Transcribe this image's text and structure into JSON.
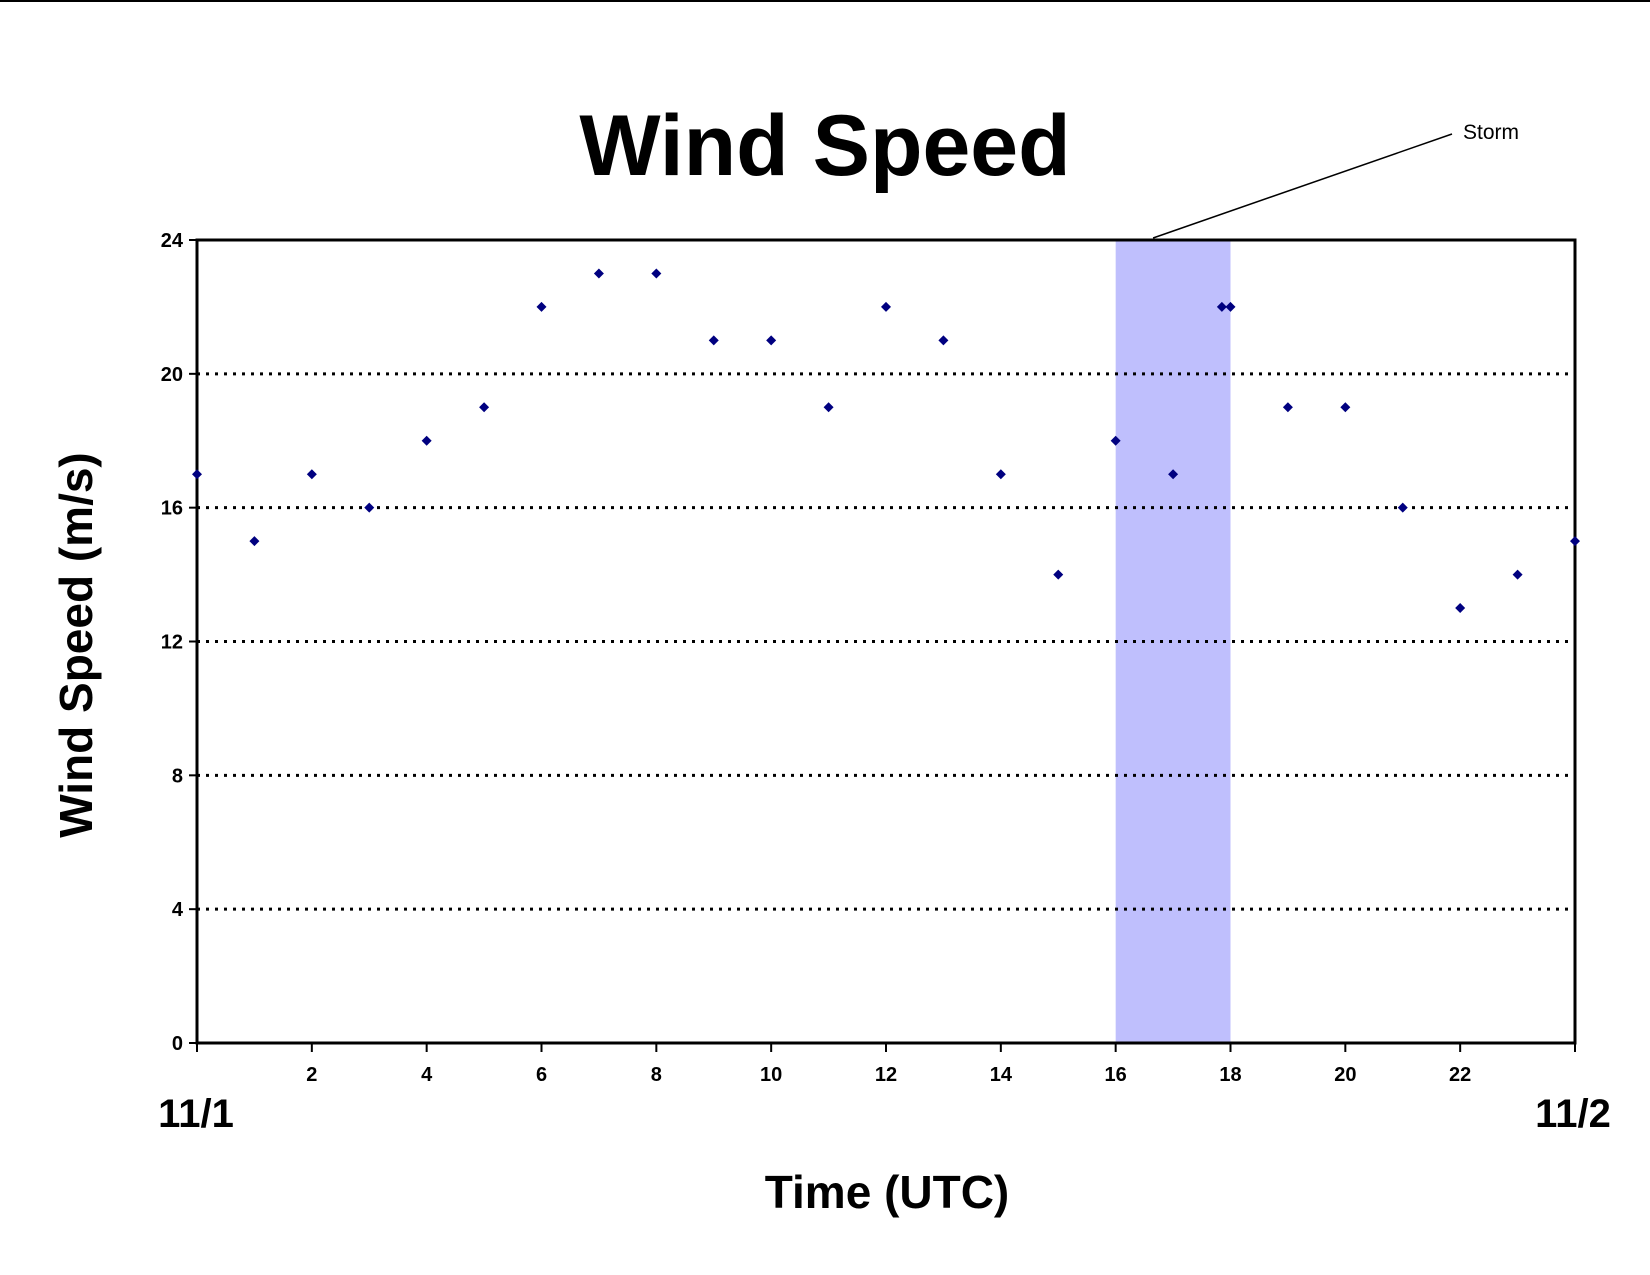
{
  "chart_data": {
    "type": "scatter",
    "title": "Wind Speed",
    "xlabel": "Time (UTC)",
    "ylabel": "Wind Speed (m/s)",
    "xlim": [
      0,
      24
    ],
    "ylim": [
      0,
      24
    ],
    "x_ticks": [
      2,
      4,
      6,
      8,
      10,
      12,
      14,
      16,
      18,
      20,
      22
    ],
    "y_ticks": [
      0,
      4,
      8,
      12,
      16,
      20,
      24
    ],
    "grid": "horizontal dotted",
    "date_labels": {
      "start": "11/1",
      "end": "11/2"
    },
    "marker_color": "#000080",
    "points": [
      {
        "x": 0,
        "y": 17
      },
      {
        "x": 1,
        "y": 15
      },
      {
        "x": 2,
        "y": 17
      },
      {
        "x": 3,
        "y": 16
      },
      {
        "x": 4,
        "y": 18
      },
      {
        "x": 5,
        "y": 19
      },
      {
        "x": 6,
        "y": 22
      },
      {
        "x": 7,
        "y": 23
      },
      {
        "x": 8,
        "y": 23
      },
      {
        "x": 9,
        "y": 21
      },
      {
        "x": 10,
        "y": 21
      },
      {
        "x": 11,
        "y": 19
      },
      {
        "x": 12,
        "y": 22
      },
      {
        "x": 13,
        "y": 21
      },
      {
        "x": 14,
        "y": 17
      },
      {
        "x": 15,
        "y": 14
      },
      {
        "x": 16,
        "y": 18
      },
      {
        "x": 17,
        "y": 17
      },
      {
        "x": 17.85,
        "y": 22
      },
      {
        "x": 18,
        "y": 22
      },
      {
        "x": 19,
        "y": 19
      },
      {
        "x": 20,
        "y": 19
      },
      {
        "x": 21,
        "y": 16
      },
      {
        "x": 22,
        "y": 13
      },
      {
        "x": 23,
        "y": 14
      },
      {
        "x": 24,
        "y": 15
      }
    ],
    "shaded_region": {
      "label": "Storm",
      "x_start": 16,
      "x_end": 18,
      "color": "#bfbffd"
    }
  }
}
